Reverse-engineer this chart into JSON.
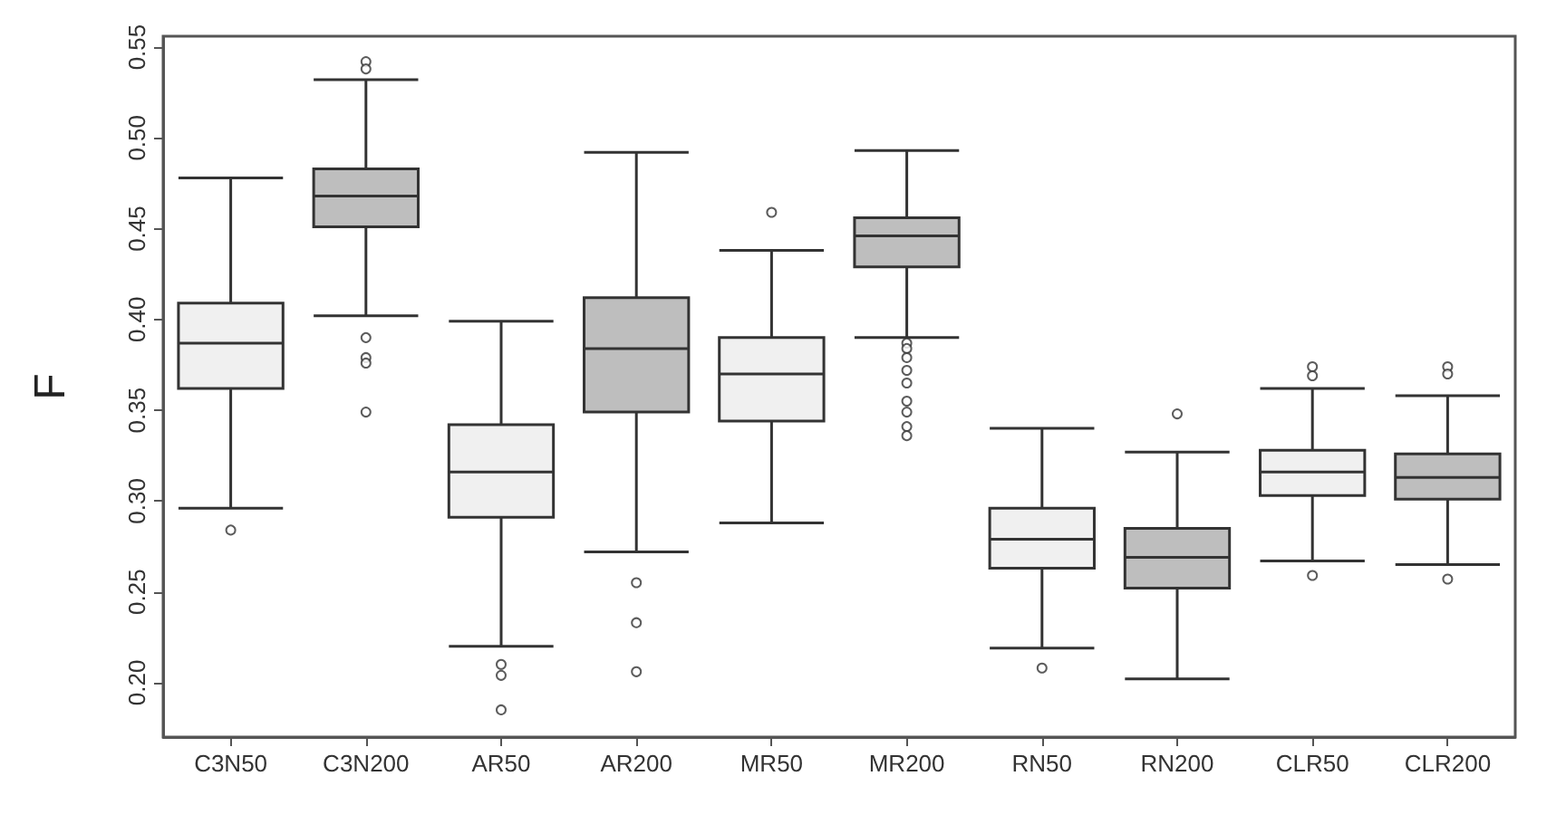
{
  "chart_data": {
    "type": "box",
    "ylabel": "F",
    "categories": [
      "C3N50",
      "C3N200",
      "AR50",
      "AR200",
      "MR50",
      "MR200",
      "RN50",
      "RN200",
      "CLR50",
      "CLR200"
    ],
    "colors": [
      "#f0f0f0",
      "#bebebe",
      "#f0f0f0",
      "#bebebe",
      "#f0f0f0",
      "#bebebe",
      "#f0f0f0",
      "#bebebe",
      "#f0f0f0",
      "#bebebe"
    ],
    "boxes": [
      {
        "low": 0.296,
        "q1": 0.362,
        "median": 0.387,
        "q3": 0.409,
        "high": 0.478,
        "outliers": [
          0.284
        ]
      },
      {
        "low": 0.402,
        "q1": 0.451,
        "median": 0.468,
        "q3": 0.483,
        "high": 0.532,
        "outliers": [
          0.542,
          0.538,
          0.39,
          0.379,
          0.376,
          0.349
        ]
      },
      {
        "low": 0.22,
        "q1": 0.291,
        "median": 0.316,
        "q3": 0.342,
        "high": 0.399,
        "outliers": [
          0.21,
          0.204,
          0.185
        ]
      },
      {
        "low": 0.272,
        "q1": 0.349,
        "median": 0.384,
        "q3": 0.412,
        "high": 0.492,
        "outliers": [
          0.255,
          0.233,
          0.206
        ]
      },
      {
        "low": 0.288,
        "q1": 0.344,
        "median": 0.37,
        "q3": 0.39,
        "high": 0.438,
        "outliers": [
          0.459
        ]
      },
      {
        "low": 0.39,
        "q1": 0.429,
        "median": 0.446,
        "q3": 0.456,
        "high": 0.493,
        "outliers": [
          0.387,
          0.384,
          0.379,
          0.372,
          0.365,
          0.355,
          0.349,
          0.341,
          0.336
        ]
      },
      {
        "low": 0.219,
        "q1": 0.263,
        "median": 0.279,
        "q3": 0.296,
        "high": 0.34,
        "outliers": [
          0.208
        ]
      },
      {
        "low": 0.202,
        "q1": 0.252,
        "median": 0.269,
        "q3": 0.285,
        "high": 0.327,
        "outliers": [
          0.348
        ]
      },
      {
        "low": 0.267,
        "q1": 0.303,
        "median": 0.316,
        "q3": 0.328,
        "high": 0.362,
        "outliers": [
          0.374,
          0.369,
          0.259
        ]
      },
      {
        "low": 0.265,
        "q1": 0.301,
        "median": 0.313,
        "q3": 0.326,
        "high": 0.358,
        "outliers": [
          0.374,
          0.37,
          0.257
        ]
      }
    ],
    "ylim": [
      0.17,
      0.556
    ],
    "yticks": [
      {
        "value": 0.2,
        "label": "0.20"
      },
      {
        "value": 0.25,
        "label": "0.25"
      },
      {
        "value": 0.3,
        "label": "0.30"
      },
      {
        "value": 0.35,
        "label": "0.35"
      },
      {
        "value": 0.4,
        "label": "0.40"
      },
      {
        "value": 0.45,
        "label": "0.45"
      },
      {
        "value": 0.5,
        "label": "0.50"
      },
      {
        "value": 0.55,
        "label": "0.55"
      }
    ],
    "grid": false,
    "legend": false
  }
}
